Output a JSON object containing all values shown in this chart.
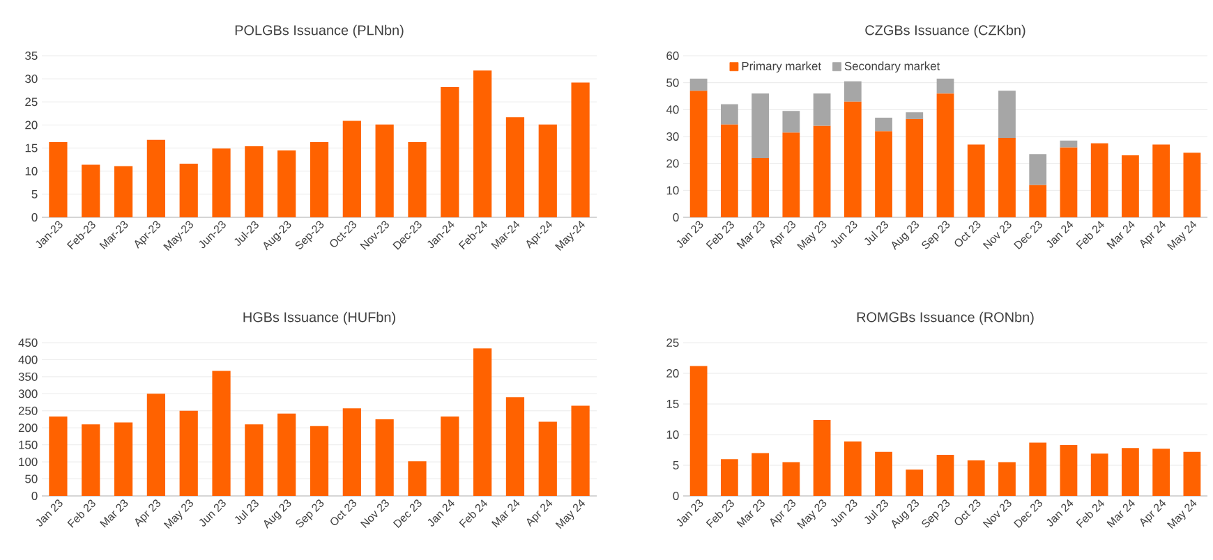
{
  "chart_data": [
    {
      "type": "bar",
      "title": "POLGBs Issuance (PLNbn)",
      "categories": [
        "Jan-23",
        "Feb-23",
        "Mar-23",
        "Apr-23",
        "May-23",
        "Jun-23",
        "Jul-23",
        "Aug-23",
        "Sep-23",
        "Oct-23",
        "Nov-23",
        "Dec-23",
        "Jan-24",
        "Feb-24",
        "Mar-24",
        "Apr-24",
        "May-24"
      ],
      "values": [
        16.3,
        11.4,
        11.1,
        16.8,
        11.6,
        14.9,
        15.4,
        14.5,
        16.3,
        20.9,
        20.1,
        16.3,
        28.2,
        31.8,
        21.7,
        20.1,
        29.2
      ],
      "color": "#ff6200",
      "ylim": [
        0,
        35
      ],
      "yticks": [
        0,
        5,
        10,
        15,
        20,
        25,
        30,
        35
      ],
      "grid": "y"
    },
    {
      "type": "bar",
      "title": "CZGBs Issuance (CZKbn)",
      "categories": [
        "Jan 23",
        "Feb 23",
        "Mar 23",
        "Apr 23",
        "May 23",
        "Jun 23",
        "Jul 23",
        "Aug 23",
        "Sep 23",
        "Oct 23",
        "Nov 23",
        "Dec 23",
        "Jan 24",
        "Feb 24",
        "Mar 24",
        "Apr 24",
        "May 24"
      ],
      "stacked": true,
      "series": [
        {
          "name": "Primary market",
          "color": "#ff6200",
          "values": [
            47,
            34.5,
            22,
            31.5,
            34,
            43,
            32,
            36.5,
            46,
            27,
            29.5,
            12,
            26,
            27.5,
            23,
            27,
            24
          ]
        },
        {
          "name": "Secondary market",
          "color": "#a6a6a6",
          "values": [
            4.5,
            7.5,
            24,
            8,
            12,
            7.5,
            5,
            2.5,
            5.5,
            null,
            17.5,
            11.5,
            2.5,
            null,
            null,
            null,
            null
          ]
        }
      ],
      "ylim": [
        0,
        60
      ],
      "yticks": [
        0,
        10,
        20,
        30,
        40,
        50,
        60
      ],
      "grid": "y",
      "legend": "top left"
    },
    {
      "type": "bar",
      "title": "HGBs Issuance (HUFbn)",
      "categories": [
        "Jan 23",
        "Feb 23",
        "Mar 23",
        "Apr 23",
        "May 23",
        "Jun 23",
        "Jul 23",
        "Aug 23",
        "Sep 23",
        "Oct 23",
        "Nov 23",
        "Dec 23",
        "Jan 24",
        "Feb 24",
        "Mar 24",
        "Apr 24",
        "May 24"
      ],
      "values": [
        233,
        210,
        216,
        300,
        250,
        367,
        210,
        242,
        205,
        257,
        225,
        102,
        233,
        433,
        290,
        218,
        265
      ],
      "color": "#ff6200",
      "ylim": [
        0,
        450
      ],
      "yticks": [
        0,
        50,
        100,
        150,
        200,
        250,
        300,
        350,
        400,
        450
      ],
      "grid": "y"
    },
    {
      "type": "bar",
      "title": "ROMGBs Issuance (RONbn)",
      "categories": [
        "Jan 23",
        "Feb 23",
        "Mar 23",
        "Apr 23",
        "May 23",
        "Jun 23",
        "Jul 23",
        "Aug 23",
        "Sep 23",
        "Oct 23",
        "Nov 23",
        "Dec 23",
        "Jan 24",
        "Feb 24",
        "Mar 24",
        "Apr 24",
        "May 24"
      ],
      "values": [
        21.2,
        6.0,
        7.0,
        5.5,
        12.4,
        8.9,
        7.2,
        4.3,
        6.7,
        5.8,
        5.5,
        8.7,
        8.3,
        6.9,
        7.8,
        7.7,
        7.2
      ],
      "color": "#ff6200",
      "ylim": [
        0,
        25
      ],
      "yticks": [
        0,
        5,
        10,
        15,
        20,
        25
      ],
      "grid": "y"
    }
  ]
}
